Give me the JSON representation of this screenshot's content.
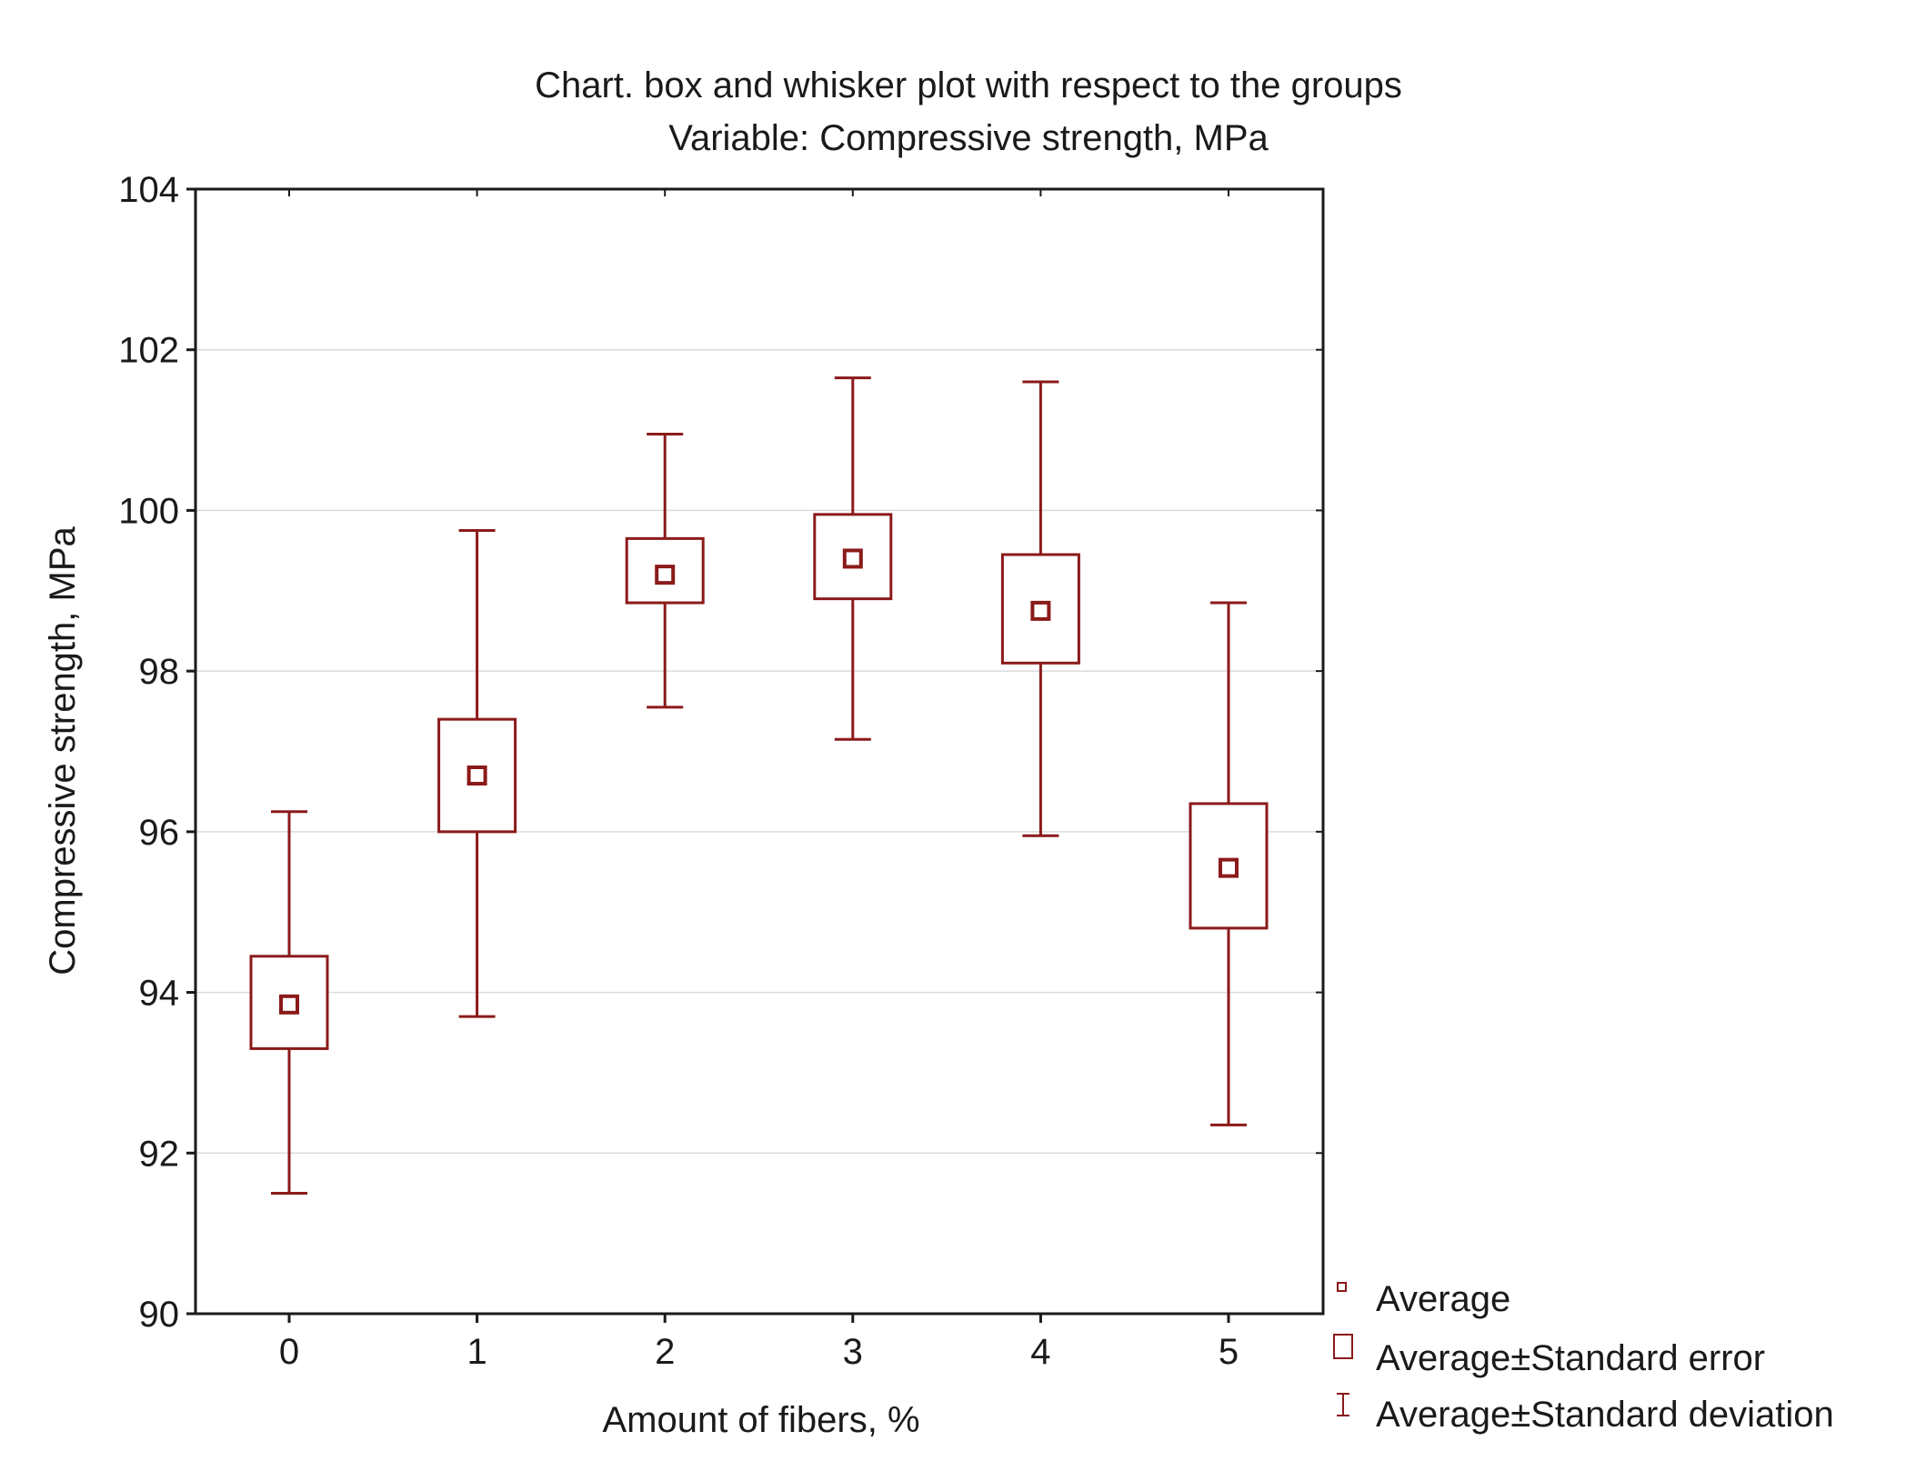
{
  "chart_data": {
    "type": "box",
    "title": "Chart. box and whisker plot with respect to the groups",
    "subtitle": "Variable: Compressive strength, MPa",
    "xlabel": "Amount of fibers, %",
    "ylabel": "Compressive strength, MPa",
    "ylim": [
      90,
      104
    ],
    "yticks": [
      "90",
      "92",
      "94",
      "96",
      "98",
      "100",
      "102",
      "104"
    ],
    "grid": true,
    "legend_position": "bottom-right, outside plot",
    "categories": [
      "0",
      "1",
      "2",
      "3",
      "4",
      "5"
    ],
    "series": [
      {
        "name": "Average",
        "values": [
          93.85,
          96.7,
          99.2,
          99.4,
          98.75,
          95.55
        ]
      },
      {
        "name": "Average±Standard error",
        "low": [
          93.3,
          96.0,
          98.85,
          98.9,
          98.1,
          94.8
        ],
        "high": [
          94.45,
          97.4,
          99.65,
          99.95,
          99.45,
          96.35
        ]
      },
      {
        "name": "Average±Standard deviation",
        "low": [
          91.5,
          93.7,
          97.55,
          97.15,
          95.95,
          92.35
        ],
        "high": [
          96.25,
          99.75,
          100.95,
          101.65,
          101.6,
          98.85
        ]
      }
    ],
    "legend": [
      "Average",
      "Average±Standard error",
      "Average±Standard deviation"
    ]
  },
  "colors": {
    "series": "#8b1a1a",
    "axis": "#1a1a1a",
    "grid": "#dcdcdc"
  }
}
